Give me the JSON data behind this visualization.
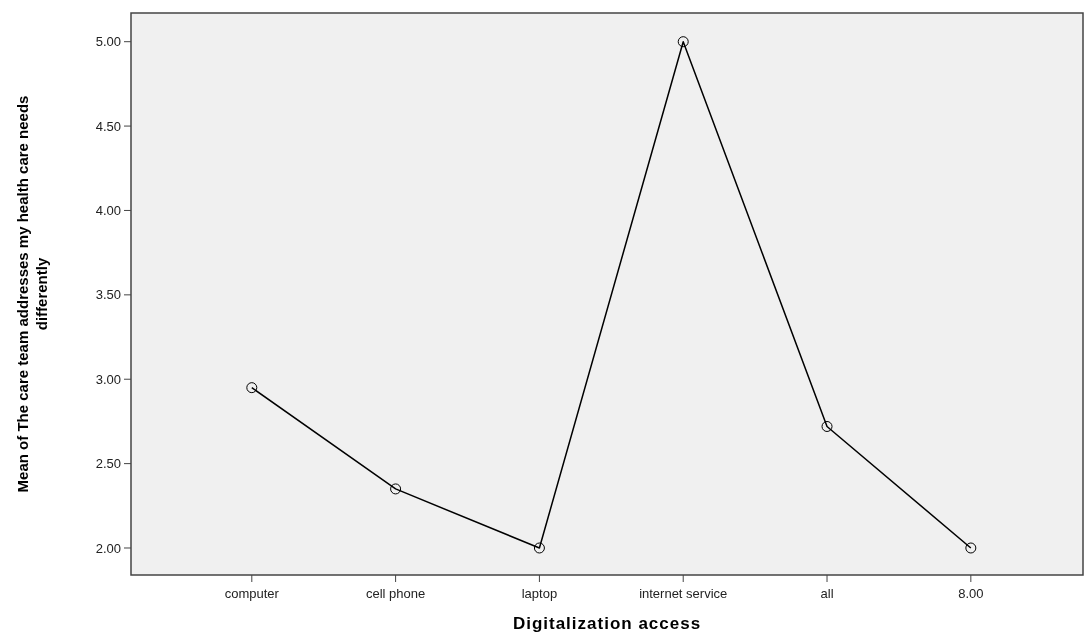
{
  "chart_data": {
    "type": "line",
    "xlabel": "Digitalization access",
    "ylabel": "Mean of The care team addresses my health care needs differently",
    "categories": [
      "computer",
      "cell phone",
      "laptop",
      "internet service",
      "all",
      "8.00"
    ],
    "series": [
      {
        "color": "#000000",
        "values": [
          2.95,
          2.35,
          2.0,
          5.0,
          2.72,
          2.0
        ]
      }
    ],
    "ylim": [
      1.84,
      5.17
    ],
    "yticks": [
      {
        "value": 2,
        "label": "2.00"
      },
      {
        "value": 2.5,
        "label": "2.50"
      },
      {
        "value": 3,
        "label": "3.00"
      },
      {
        "value": 3.5,
        "label": "3.50"
      },
      {
        "value": 4,
        "label": "4.00"
      },
      {
        "value": 4.5,
        "label": "4.50"
      },
      {
        "value": 5,
        "label": "5.00"
      }
    ],
    "marker": "circle",
    "line_style": "solid"
  }
}
